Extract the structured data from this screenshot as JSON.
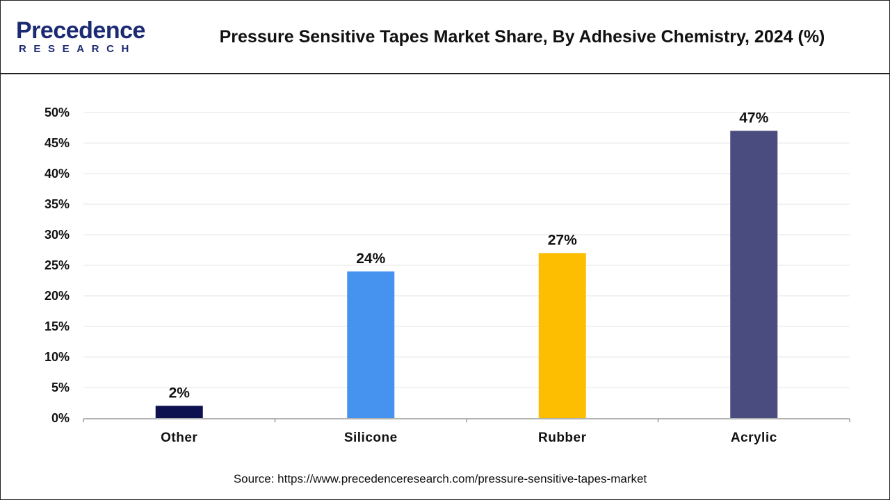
{
  "header": {
    "logo_word": "Precedence",
    "logo_sub": "RESEARCH",
    "title": "Pressure Sensitive Tapes Market Share, By Adhesive Chemistry, 2024 (%)"
  },
  "footer": {
    "source": "Source: https://www.precedenceresearch.com/pressure-sensitive-tapes-market"
  },
  "chart_data": {
    "type": "bar",
    "title": "Pressure Sensitive Tapes Market Share, By Adhesive Chemistry, 2024 (%)",
    "xlabel": "",
    "ylabel": "",
    "categories": [
      "Other",
      "Silicone",
      "Rubber",
      "Acrylic"
    ],
    "values": [
      2,
      24,
      27,
      47
    ],
    "data_labels": [
      "2%",
      "24%",
      "27%",
      "47%"
    ],
    "colors": [
      "#0d1150",
      "#4593ef",
      "#fdbd00",
      "#4a4c80"
    ],
    "ylim": [
      0,
      50
    ],
    "yticks": [
      0,
      5,
      10,
      15,
      20,
      25,
      30,
      35,
      40,
      45,
      50
    ],
    "ytick_labels": [
      "0%",
      "5%",
      "10%",
      "15%",
      "20%",
      "25%",
      "30%",
      "35%",
      "40%",
      "45%",
      "50%"
    ],
    "grid": true,
    "legend": "none"
  }
}
